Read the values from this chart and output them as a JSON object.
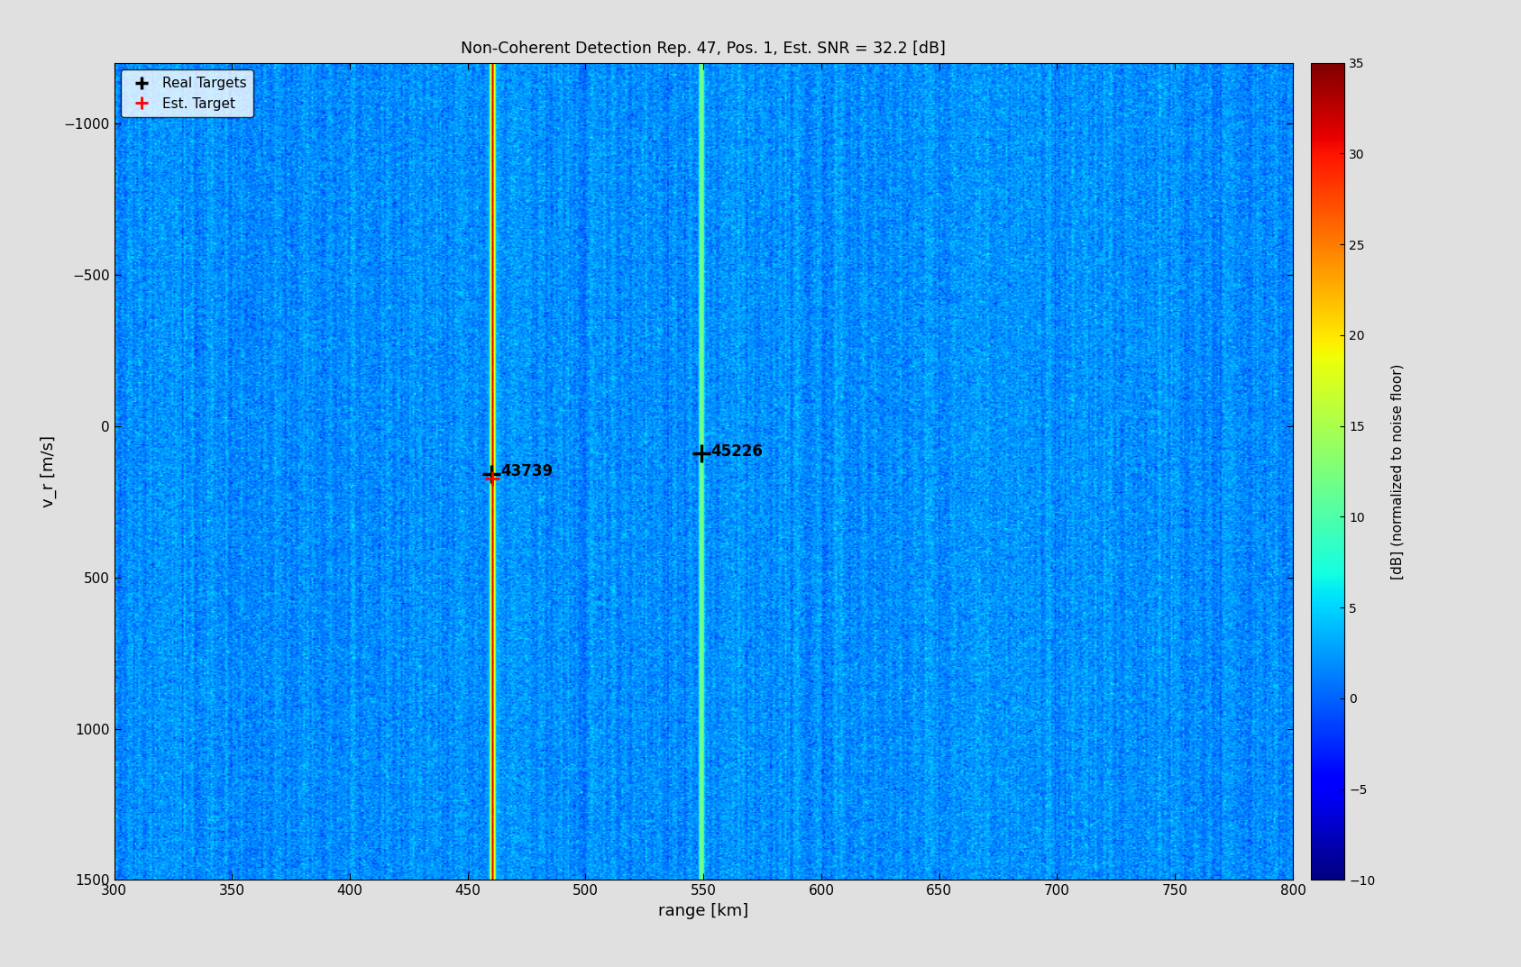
{
  "title": "Non-Coherent Detection Rep. 47, Pos. 1, Est. SNR = 32.2 [dB]",
  "xlabel": "range [km]",
  "ylabel": "v_r [m/s]",
  "colorbar_label": "[dB] (normalized to noise floor)",
  "xlim": [
    300,
    800
  ],
  "ylim_bottom": -1200,
  "ylim_top": 1500,
  "clim_min": -10,
  "clim_max": 35,
  "xticks": [
    300,
    350,
    400,
    450,
    500,
    550,
    600,
    650,
    700,
    750,
    800
  ],
  "yticks": [
    -1000,
    -500,
    0,
    500,
    1000,
    1500
  ],
  "colorbar_ticks": [
    -10,
    -5,
    0,
    5,
    10,
    15,
    20,
    25,
    30,
    35
  ],
  "target1_range": 460.0,
  "target1_vel": 160,
  "target1_label": "43739",
  "target2_range": 549.0,
  "target2_vel": 90,
  "target2_label": "45226",
  "line1_range": 460.0,
  "line2_range": 549.0,
  "noise_mean": 2.0,
  "noise_std": 1.5,
  "signal_peak1": 32,
  "signal_peak2": 15,
  "line_sigma": 1.0,
  "background_color": "#e0e0e0",
  "fig_width": 16.87,
  "fig_height": 10.73,
  "dpi": 100
}
